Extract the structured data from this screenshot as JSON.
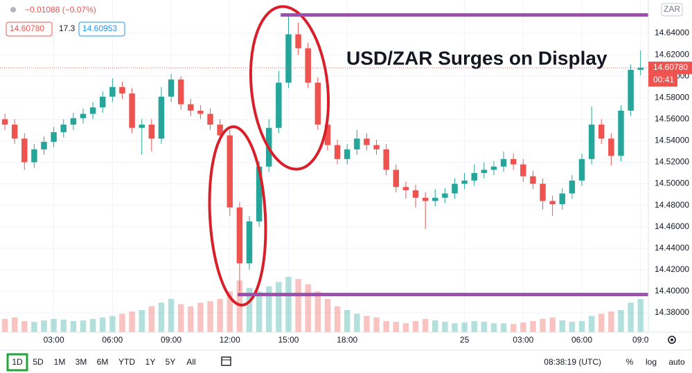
{
  "header": {
    "change": "−0.01088 (−0.07%)",
    "sell": "14.60780",
    "spread": "17.3",
    "buy": "14.60953"
  },
  "chart_data": {
    "type": "candlestick",
    "title": "USD/ZAR Surges on Display",
    "x": [
      0.5,
      1,
      1.5,
      2,
      2.5,
      3,
      3.5,
      4,
      4.5,
      5,
      5.5,
      6,
      6.5,
      7,
      7.5,
      8,
      8.5,
      9,
      9.5,
      10,
      10.5,
      11,
      11.5,
      12,
      12.5,
      13,
      13.5,
      14,
      14.5,
      15,
      15.5,
      16,
      16.5,
      17,
      17.5,
      18,
      18.5,
      19,
      19.5,
      20,
      20.5,
      21,
      21.5,
      22,
      22.5,
      23,
      23.5,
      24,
      24.5,
      25,
      25.5,
      26,
      26.5,
      27,
      27.5,
      28,
      28.5,
      29,
      29.5,
      30,
      30.5,
      31,
      31.5,
      32,
      32.5,
      33
    ],
    "open": [
      14.56,
      14.555,
      14.542,
      14.52,
      14.532,
      14.539,
      14.548,
      14.555,
      14.561,
      14.565,
      14.571,
      14.581,
      14.59,
      14.584,
      14.552,
      14.555,
      14.542,
      14.581,
      14.597,
      14.574,
      14.568,
      14.565,
      14.555,
      14.545,
      14.478,
      14.426,
      14.465,
      14.516,
      14.552,
      14.594,
      14.639,
      14.626,
      14.594,
      14.555,
      14.536,
      14.523,
      14.532,
      14.542,
      14.536,
      14.532,
      14.513,
      14.497,
      14.494,
      14.487,
      14.484,
      14.487,
      14.491,
      14.5,
      14.503,
      14.51,
      14.513,
      14.516,
      14.523,
      14.518,
      14.507,
      14.5,
      14.484,
      14.481,
      14.491,
      14.503,
      14.523,
      14.555,
      14.542,
      14.526,
      14.568,
      14.606
    ],
    "high": [
      14.565,
      14.56,
      14.547,
      14.537,
      14.544,
      14.553,
      14.56,
      14.566,
      14.57,
      14.576,
      14.586,
      14.598,
      14.595,
      14.589,
      14.56,
      14.56,
      14.59,
      14.602,
      14.6,
      14.579,
      14.573,
      14.57,
      14.56,
      14.55,
      14.483,
      14.47,
      14.521,
      14.56,
      14.605,
      14.657,
      14.65,
      14.631,
      14.599,
      14.565,
      14.541,
      14.537,
      14.55,
      14.547,
      14.541,
      14.537,
      14.518,
      14.502,
      14.499,
      14.492,
      14.495,
      14.496,
      14.505,
      14.51,
      14.518,
      14.52,
      14.521,
      14.53,
      14.528,
      14.523,
      14.512,
      14.505,
      14.489,
      14.496,
      14.508,
      14.528,
      14.572,
      14.56,
      14.547,
      14.573,
      14.611,
      14.624
    ],
    "low": [
      14.55,
      14.537,
      14.513,
      14.515,
      14.527,
      14.534,
      14.543,
      14.55,
      14.556,
      14.56,
      14.566,
      14.576,
      14.579,
      14.547,
      14.527,
      14.53,
      14.537,
      14.576,
      14.569,
      14.563,
      14.56,
      14.55,
      14.538,
      14.47,
      14.4,
      14.42,
      14.46,
      14.511,
      14.547,
      14.589,
      14.62,
      14.589,
      14.55,
      14.531,
      14.518,
      14.518,
      14.527,
      14.531,
      14.527,
      14.508,
      14.492,
      14.486,
      14.478,
      14.458,
      14.479,
      14.482,
      14.486,
      14.495,
      14.498,
      14.505,
      14.508,
      14.511,
      14.513,
      14.502,
      14.495,
      14.476,
      14.47,
      14.476,
      14.486,
      14.498,
      14.518,
      14.537,
      14.517,
      14.521,
      14.563,
      14.601
    ],
    "close": [
      14.555,
      14.542,
      14.52,
      14.532,
      14.539,
      14.548,
      14.555,
      14.561,
      14.565,
      14.571,
      14.581,
      14.59,
      14.584,
      14.552,
      14.555,
      14.542,
      14.581,
      14.597,
      14.574,
      14.568,
      14.565,
      14.555,
      14.545,
      14.478,
      14.426,
      14.465,
      14.516,
      14.552,
      14.594,
      14.639,
      14.626,
      14.594,
      14.555,
      14.536,
      14.523,
      14.532,
      14.542,
      14.536,
      14.532,
      14.513,
      14.497,
      14.494,
      14.487,
      14.484,
      14.487,
      14.491,
      14.5,
      14.503,
      14.51,
      14.513,
      14.516,
      14.523,
      14.518,
      14.507,
      14.5,
      14.484,
      14.481,
      14.491,
      14.503,
      14.523,
      14.555,
      14.542,
      14.526,
      14.568,
      14.606,
      14.608
    ],
    "volume": [
      18,
      20,
      15,
      14,
      16,
      18,
      17,
      15,
      16,
      18,
      20,
      22,
      25,
      28,
      30,
      35,
      40,
      45,
      38,
      35,
      40,
      42,
      45,
      55,
      70,
      60,
      55,
      62,
      68,
      75,
      72,
      65,
      55,
      45,
      35,
      30,
      25,
      22,
      20,
      15,
      14,
      12,
      15,
      18,
      16,
      14,
      12,
      13,
      15,
      14,
      12,
      12,
      11,
      13,
      15,
      18,
      20,
      16,
      14,
      15,
      22,
      25,
      28,
      30,
      40,
      45
    ],
    "up_color": "#26a69a",
    "down_color": "#ef5350",
    "xlim": [
      0.25,
      33.4
    ],
    "xticks": [
      {
        "value": 3,
        "label": "03:00"
      },
      {
        "value": 6,
        "label": "06:00"
      },
      {
        "value": 9,
        "label": "09:00"
      },
      {
        "value": 12,
        "label": "12:00"
      },
      {
        "value": 15,
        "label": "15:00"
      },
      {
        "value": 18,
        "label": "18:00"
      },
      {
        "value": 24,
        "label": "25"
      },
      {
        "value": 27,
        "label": "03:00"
      },
      {
        "value": 30,
        "label": "06:00"
      },
      {
        "value": 33,
        "label": "09:0"
      }
    ],
    "ylim": [
      14.362,
      14.6709
    ],
    "yticks": [
      {
        "value": 14.38,
        "label": "14.38000"
      },
      {
        "value": 14.4,
        "label": "14.40000"
      },
      {
        "value": 14.42,
        "label": "14.42000"
      },
      {
        "value": 14.44,
        "label": "14.44000"
      },
      {
        "value": 14.46,
        "label": "14.46000"
      },
      {
        "value": 14.48,
        "label": "14.48000"
      },
      {
        "value": 14.5,
        "label": "14.50000"
      },
      {
        "value": 14.52,
        "label": "14.52000"
      },
      {
        "value": 14.54,
        "label": "14.54000"
      },
      {
        "value": 14.56,
        "label": "14.56000"
      },
      {
        "value": 14.58,
        "label": "14.58000"
      },
      {
        "value": 14.6,
        "label": "14.60000"
      },
      {
        "value": 14.62,
        "label": "14.62000"
      },
      {
        "value": 14.64,
        "label": "14.64000"
      }
    ],
    "grid": true,
    "currency": "ZAR",
    "last_price": {
      "value": 14.6078,
      "label": "14.60780",
      "color": "#ef5350"
    },
    "countdown": "00:41",
    "levels": [
      {
        "value": 14.657,
        "from": 14.6,
        "color": "#9c4dad"
      },
      {
        "value": 14.397,
        "from": 12.4,
        "color": "#9c4dad"
      }
    ]
  },
  "toolbar": {
    "ranges": [
      "1D",
      "5D",
      "1M",
      "3M",
      "6M",
      "YTD",
      "1Y",
      "5Y",
      "All"
    ],
    "clock": "08:38:19 (UTC)",
    "percent": "%",
    "log": "log",
    "auto": "auto"
  }
}
